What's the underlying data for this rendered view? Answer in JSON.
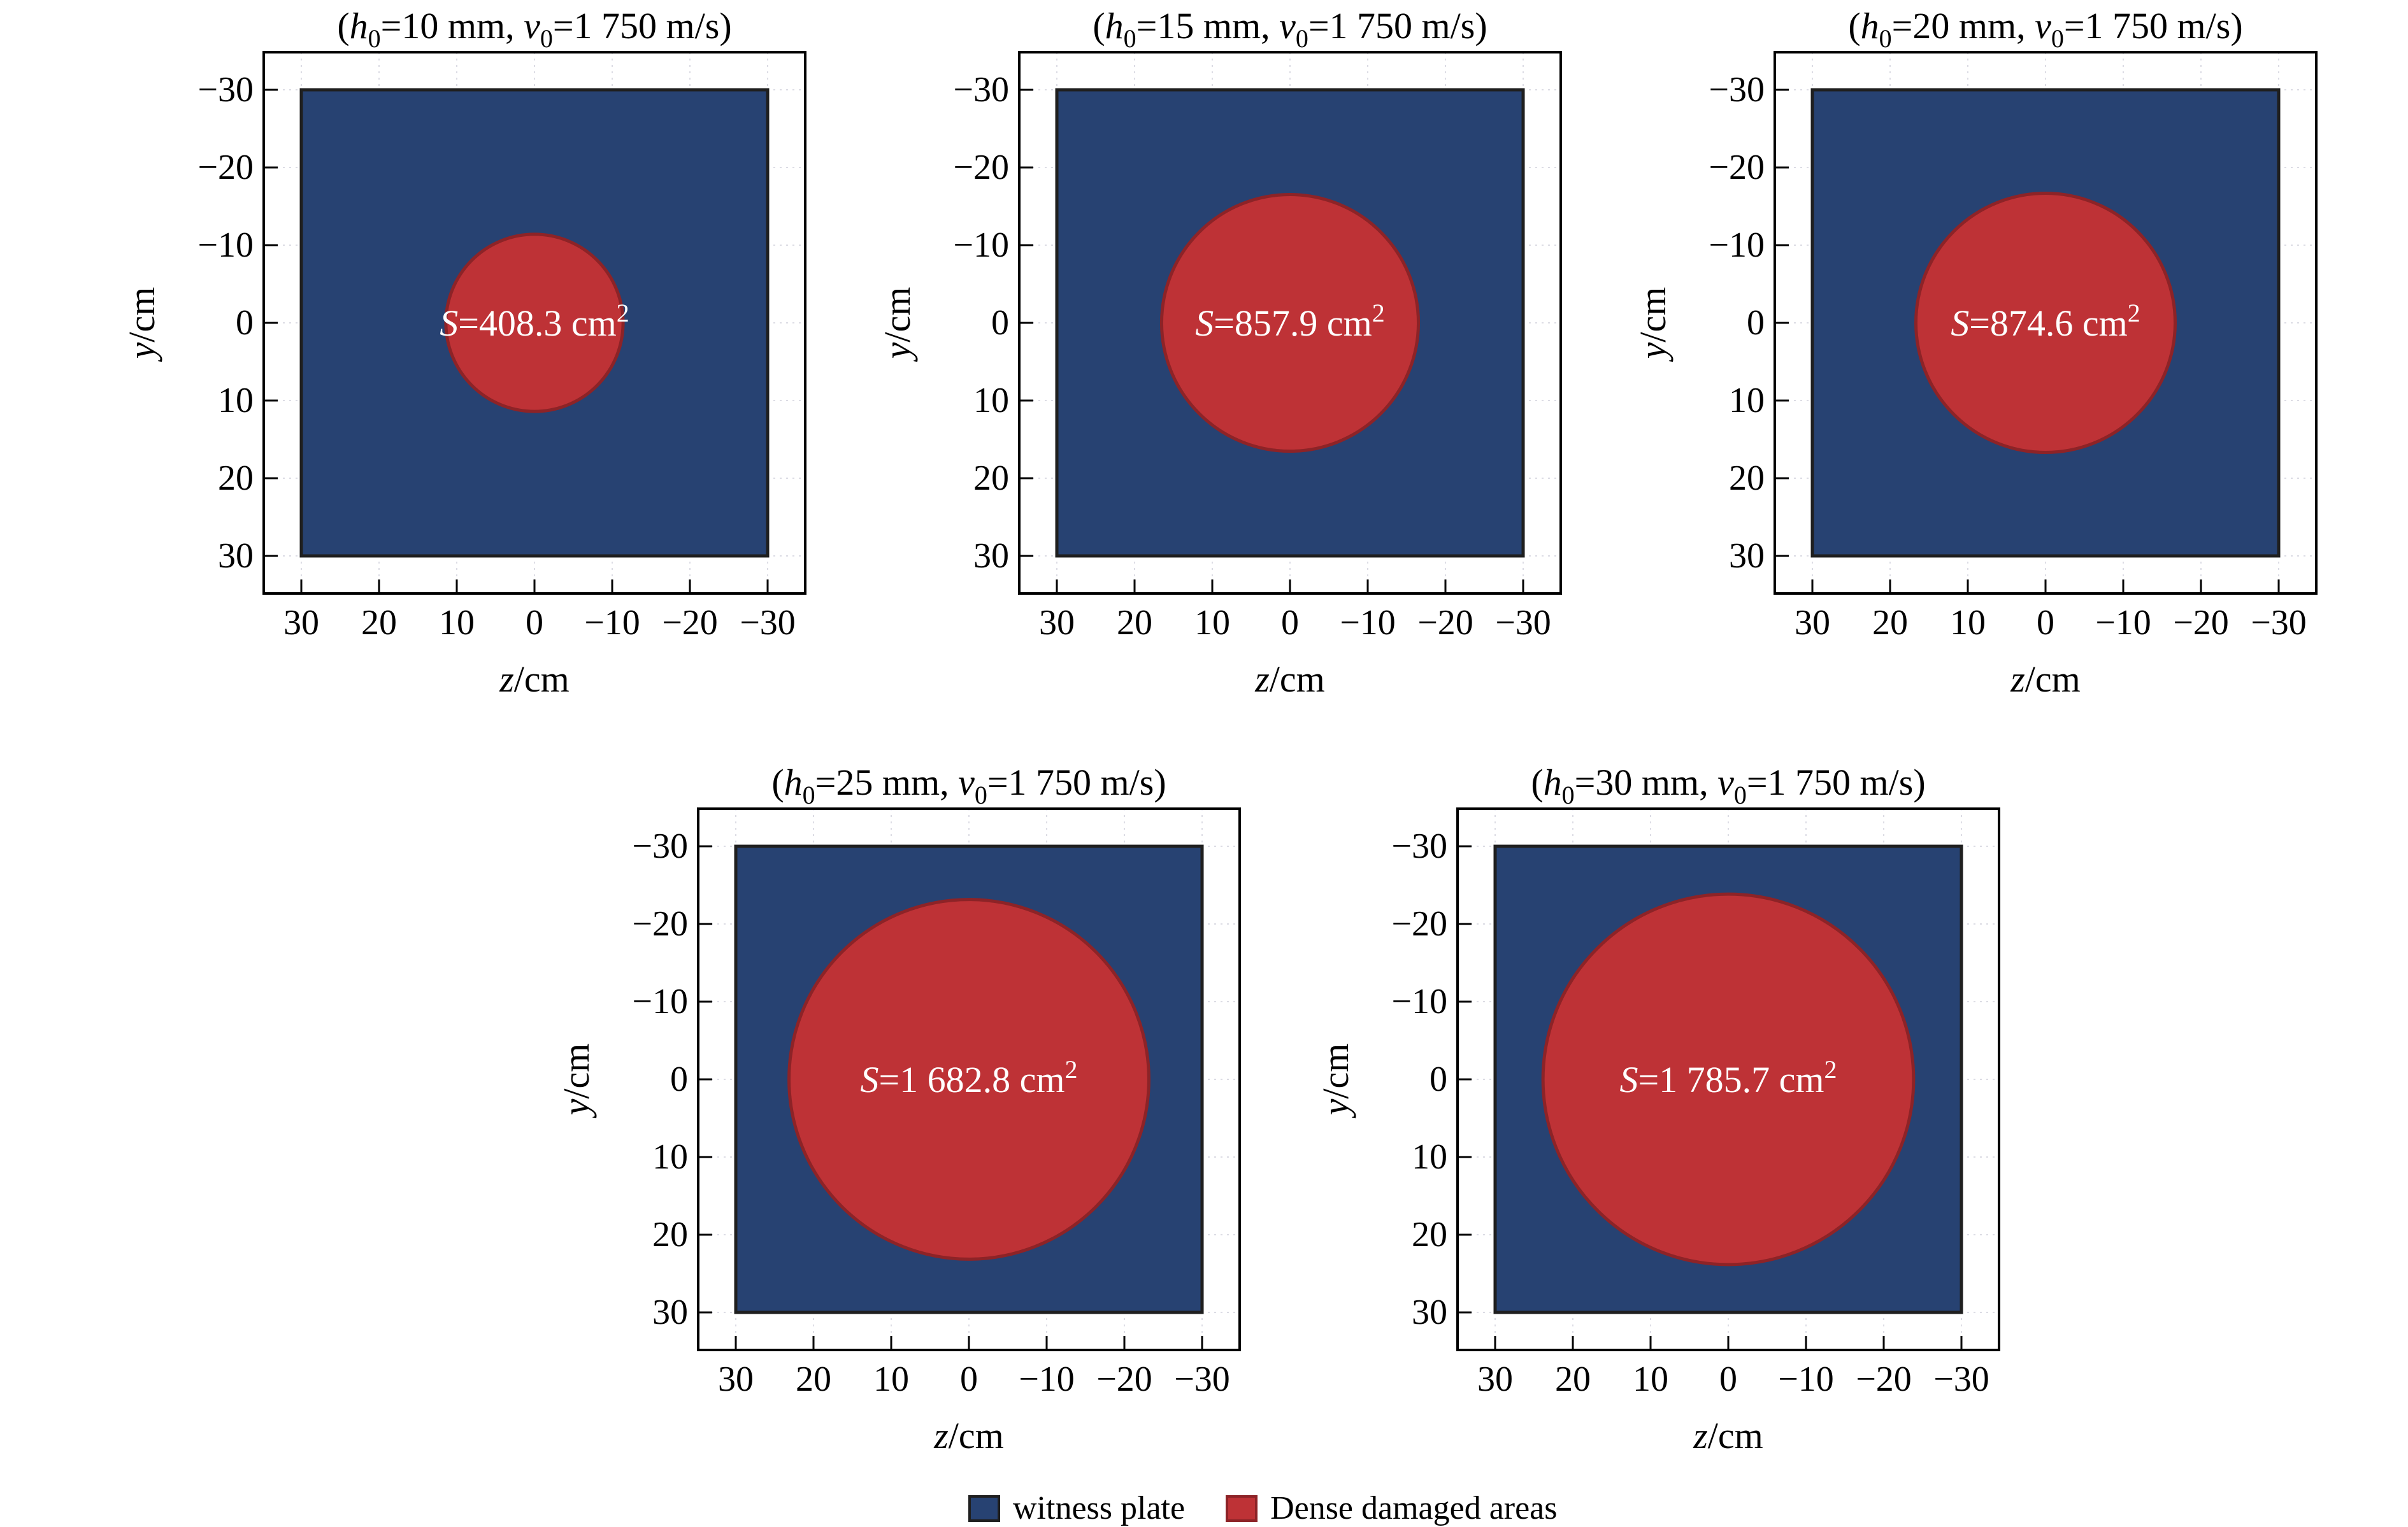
{
  "figure": {
    "colors": {
      "background": "#ffffff",
      "plate_fill": "#274272",
      "plate_edge": "#1f1f1f",
      "circle_fill": "#be3236",
      "circle_edge": "#8d2327",
      "grid": "#dcdce4",
      "axis": "#000000",
      "annotation_text": "#ffffff"
    },
    "axis": {
      "y_label_var": "y",
      "y_label_unit": "/cm",
      "x_label_var": "z",
      "x_label_unit": "/cm",
      "y_ticks": [
        "−30",
        "−20",
        "−10",
        "0",
        "10",
        "20",
        "30"
      ],
      "y_tick_values": [
        -30,
        -20,
        -10,
        0,
        10,
        20,
        30
      ],
      "x_ticks": [
        "30",
        "20",
        "10",
        "0",
        "−10",
        "−20",
        "−30"
      ],
      "x_tick_values": [
        30,
        20,
        10,
        0,
        -10,
        -20,
        -30
      ]
    },
    "panels": [
      {
        "id": "h0-10",
        "row": 1,
        "title": {
          "open_paren": "(",
          "h_var": "h",
          "h_sub": "0",
          "h_rest": "=10 mm, ",
          "v_var": "v",
          "v_sub": "0",
          "v_rest": "=1 750 m/s)"
        },
        "s_label": {
          "var": "S",
          "eq_value": "=408.3 cm",
          "sup": "2"
        },
        "h0_mm": 10,
        "v0_m_per_s": 1750,
        "area_cm2": 408.3,
        "radius_cm": 11.4
      },
      {
        "id": "h0-15",
        "row": 1,
        "title": {
          "open_paren": "(",
          "h_var": "h",
          "h_sub": "0",
          "h_rest": "=15 mm, ",
          "v_var": "v",
          "v_sub": "0",
          "v_rest": "=1 750 m/s)"
        },
        "s_label": {
          "var": "S",
          "eq_value": "=857.9 cm",
          "sup": "2"
        },
        "h0_mm": 15,
        "v0_m_per_s": 1750,
        "area_cm2": 857.9,
        "radius_cm": 16.52
      },
      {
        "id": "h0-20",
        "row": 1,
        "title": {
          "open_paren": "(",
          "h_var": "h",
          "h_sub": "0",
          "h_rest": "=20 mm, ",
          "v_var": "v",
          "v_sub": "0",
          "v_rest": "=1 750 m/s)"
        },
        "s_label": {
          "var": "S",
          "eq_value": "=874.6 cm",
          "sup": "2"
        },
        "h0_mm": 20,
        "v0_m_per_s": 1750,
        "area_cm2": 874.6,
        "radius_cm": 16.68
      },
      {
        "id": "h0-25",
        "row": 2,
        "title": {
          "open_paren": "(",
          "h_var": "h",
          "h_sub": "0",
          "h_rest": "=25 mm, ",
          "v_var": "v",
          "v_sub": "0",
          "v_rest": "=1 750 m/s)"
        },
        "s_label": {
          "var": "S",
          "eq_value": "=1 682.8 cm",
          "sup": "2"
        },
        "h0_mm": 25,
        "v0_m_per_s": 1750,
        "area_cm2": 1682.8,
        "radius_cm": 23.15
      },
      {
        "id": "h0-30",
        "row": 2,
        "title": {
          "open_paren": "(",
          "h_var": "h",
          "h_sub": "0",
          "h_rest": "=30 mm, ",
          "v_var": "v",
          "v_sub": "0",
          "v_rest": "=1 750 m/s)"
        },
        "s_label": {
          "var": "S",
          "eq_value": "=1 785.7 cm",
          "sup": "2"
        },
        "h0_mm": 30,
        "v0_m_per_s": 1750,
        "area_cm2": 1785.7,
        "radius_cm": 23.84
      }
    ],
    "legend": [
      {
        "label": "witness plate",
        "color": "#274272",
        "border": "#1f1f1f"
      },
      {
        "label": "Dense damaged areas",
        "color": "#be3236",
        "border": "#8d2327"
      }
    ]
  },
  "chart_data": {
    "type": "area",
    "description": "Five subplots of witness plates (blue squares, 60 cm x 60 cm) with central circular dense damaged areas (red) for increasing charge thickness h0 at constant impact velocity v0.",
    "xlabel": "z/cm",
    "ylabel": "y/cm",
    "xlim": [
      35,
      -35
    ],
    "ylim": [
      35,
      -35
    ],
    "axes_inverted": true,
    "x_ticks": [
      30,
      20,
      10,
      0,
      -10,
      -20,
      -30
    ],
    "y_ticks": [
      -30,
      -20,
      -10,
      0,
      10,
      20,
      30
    ],
    "grid": "dotted-light",
    "legend_position": "bottom-center",
    "legend_entries": [
      "witness plate",
      "Dense damaged areas"
    ],
    "subplots": [
      {
        "title": "(h0=10 mm, v0=1 750 m/s)",
        "h0_mm": 10,
        "v0_m_per_s": 1750,
        "witness_plate_z_range": [
          -30,
          30
        ],
        "witness_plate_y_range": [
          -30,
          30
        ],
        "damaged_area": {
          "shape": "circle",
          "center": [
            0,
            0
          ],
          "area_cm2": 408.3,
          "radius_cm": 11.4
        },
        "annotation": "S=408.3 cm²"
      },
      {
        "title": "(h0=15 mm, v0=1 750 m/s)",
        "h0_mm": 15,
        "v0_m_per_s": 1750,
        "witness_plate_z_range": [
          -30,
          30
        ],
        "witness_plate_y_range": [
          -30,
          30
        ],
        "damaged_area": {
          "shape": "circle",
          "center": [
            0,
            0
          ],
          "area_cm2": 857.9,
          "radius_cm": 16.52
        },
        "annotation": "S=857.9 cm²"
      },
      {
        "title": "(h0=20 mm, v0=1 750 m/s)",
        "h0_mm": 20,
        "v0_m_per_s": 1750,
        "witness_plate_z_range": [
          -30,
          30
        ],
        "witness_plate_y_range": [
          -30,
          30
        ],
        "damaged_area": {
          "shape": "circle",
          "center": [
            0,
            0
          ],
          "area_cm2": 874.6,
          "radius_cm": 16.68
        },
        "annotation": "S=874.6 cm²"
      },
      {
        "title": "(h0=25 mm, v0=1 750 m/s)",
        "h0_mm": 25,
        "v0_m_per_s": 1750,
        "witness_plate_z_range": [
          -30,
          30
        ],
        "witness_plate_y_range": [
          -30,
          30
        ],
        "damaged_area": {
          "shape": "circle",
          "center": [
            0,
            0
          ],
          "area_cm2": 1682.8,
          "radius_cm": 23.15
        },
        "annotation": "S=1 682.8 cm²"
      },
      {
        "title": "(h0=30 mm, v0=1 750 m/s)",
        "h0_mm": 30,
        "v0_m_per_s": 1750,
        "witness_plate_z_range": [
          -30,
          30
        ],
        "witness_plate_y_range": [
          -30,
          30
        ],
        "damaged_area": {
          "shape": "circle",
          "center": [
            0,
            0
          ],
          "area_cm2": 1785.7,
          "radius_cm": 23.84
        },
        "annotation": "S=1 785.7 cm²"
      }
    ]
  }
}
